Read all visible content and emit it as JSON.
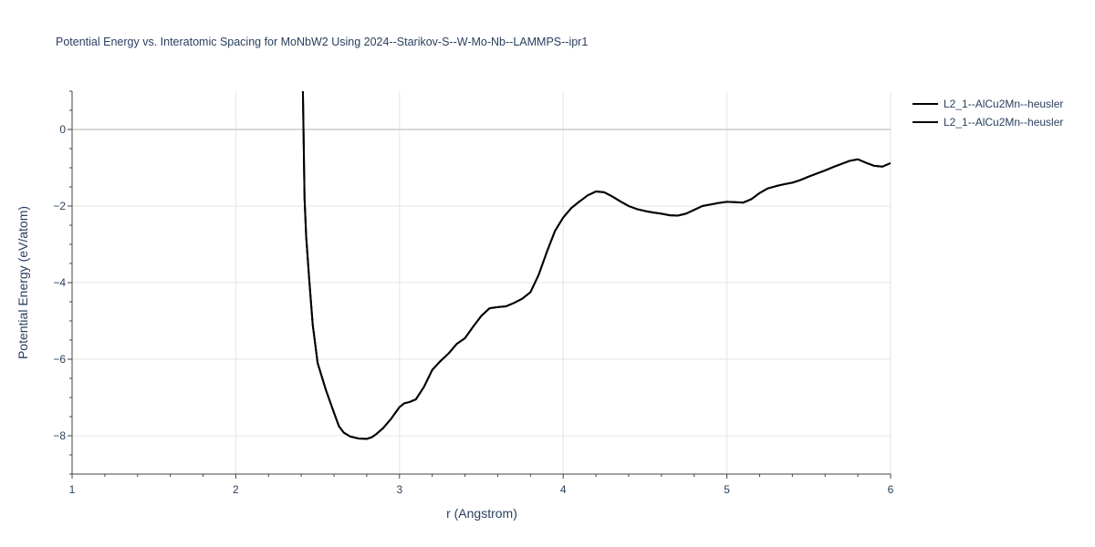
{
  "chart_data": {
    "type": "line",
    "title": "Potential Energy vs. Interatomic Spacing for MoNbW2 Using 2024--Starikov-S--W-Mo-Nb--LAMMPS--ipr1",
    "xlabel": "r (Angstrom)",
    "ylabel": "Potential Energy (eV/atom)",
    "xlim": [
      1,
      6
    ],
    "ylim": [
      -9,
      1
    ],
    "xticks": [
      1,
      2,
      3,
      4,
      5,
      6
    ],
    "yticks": [
      0,
      -2,
      -4,
      -6,
      -8
    ],
    "xtick_labels": [
      "1",
      "2",
      "3",
      "4",
      "5",
      "6"
    ],
    "ytick_labels": [
      "0",
      "−2",
      "−4",
      "−6",
      "−8"
    ],
    "grid": true,
    "legend_position": "top-right",
    "line_color": "#000000",
    "series": [
      {
        "name": "L2_1--AlCu2Mn--heusler",
        "x": [
          2.41,
          2.42,
          2.43,
          2.45,
          2.47,
          2.5,
          2.55,
          2.6,
          2.63,
          2.66,
          2.7,
          2.75,
          2.8,
          2.83,
          2.86,
          2.9,
          2.95,
          3.0,
          3.03,
          3.06,
          3.1,
          3.15,
          3.2,
          3.25,
          3.3,
          3.35,
          3.4,
          3.45,
          3.5,
          3.55,
          3.6,
          3.65,
          3.7,
          3.75,
          3.8,
          3.85,
          3.9,
          3.95,
          4.0,
          4.05,
          4.1,
          4.15,
          4.2,
          4.25,
          4.3,
          4.35,
          4.4,
          4.45,
          4.5,
          4.55,
          4.6,
          4.65,
          4.7,
          4.75,
          4.8,
          4.85,
          4.9,
          4.95,
          5.0,
          5.05,
          5.1,
          5.15,
          5.2,
          5.25,
          5.3,
          5.35,
          5.4,
          5.45,
          5.5,
          5.55,
          5.6,
          5.65,
          5.7,
          5.75,
          5.8,
          5.85,
          5.9,
          5.95,
          6.0
        ],
        "y": [
          1.0,
          -1.8,
          -2.8,
          -4.0,
          -5.1,
          -6.1,
          -6.8,
          -7.4,
          -7.75,
          -7.92,
          -8.02,
          -8.07,
          -8.08,
          -8.04,
          -7.95,
          -7.8,
          -7.55,
          -7.25,
          -7.15,
          -7.12,
          -7.05,
          -6.72,
          -6.28,
          -6.05,
          -5.85,
          -5.6,
          -5.45,
          -5.15,
          -4.87,
          -4.67,
          -4.64,
          -4.62,
          -4.53,
          -4.42,
          -4.25,
          -3.8,
          -3.2,
          -2.65,
          -2.3,
          -2.05,
          -1.88,
          -1.72,
          -1.62,
          -1.64,
          -1.75,
          -1.88,
          -2.0,
          -2.08,
          -2.13,
          -2.17,
          -2.2,
          -2.24,
          -2.25,
          -2.2,
          -2.1,
          -2.0,
          -1.96,
          -1.92,
          -1.89,
          -1.9,
          -1.91,
          -1.82,
          -1.66,
          -1.54,
          -1.48,
          -1.43,
          -1.39,
          -1.32,
          -1.23,
          -1.15,
          -1.07,
          -0.98,
          -0.9,
          -0.82,
          -0.78,
          -0.87,
          -0.95,
          -0.97,
          -0.88
        ]
      },
      {
        "name": "L2_1--AlCu2Mn--heusler",
        "x": [
          2.41,
          2.42,
          2.43,
          2.45,
          2.47,
          2.5,
          2.55,
          2.6,
          2.63,
          2.66,
          2.7,
          2.75,
          2.8,
          2.83,
          2.86,
          2.9,
          2.95,
          3.0,
          3.03,
          3.06,
          3.1,
          3.15,
          3.2,
          3.25,
          3.3,
          3.35,
          3.4,
          3.45,
          3.5,
          3.55,
          3.6,
          3.65,
          3.7,
          3.75,
          3.8,
          3.85,
          3.9,
          3.95,
          4.0,
          4.05,
          4.1,
          4.15,
          4.2,
          4.25,
          4.3,
          4.35,
          4.4,
          4.45,
          4.5,
          4.55,
          4.6,
          4.65,
          4.7,
          4.75,
          4.8,
          4.85,
          4.9,
          4.95,
          5.0,
          5.05,
          5.1,
          5.15,
          5.2,
          5.25,
          5.3,
          5.35,
          5.4,
          5.45,
          5.5,
          5.55,
          5.6,
          5.65,
          5.7,
          5.75,
          5.8,
          5.85,
          5.9,
          5.95,
          6.0
        ],
        "y": [
          1.0,
          -1.8,
          -2.8,
          -4.0,
          -5.1,
          -6.1,
          -6.8,
          -7.4,
          -7.75,
          -7.92,
          -8.02,
          -8.07,
          -8.08,
          -8.04,
          -7.95,
          -7.8,
          -7.55,
          -7.25,
          -7.15,
          -7.12,
          -7.05,
          -6.72,
          -6.28,
          -6.05,
          -5.85,
          -5.6,
          -5.45,
          -5.15,
          -4.87,
          -4.67,
          -4.64,
          -4.62,
          -4.53,
          -4.42,
          -4.25,
          -3.8,
          -3.2,
          -2.65,
          -2.3,
          -2.05,
          -1.88,
          -1.72,
          -1.62,
          -1.64,
          -1.75,
          -1.88,
          -2.0,
          -2.08,
          -2.13,
          -2.17,
          -2.2,
          -2.24,
          -2.25,
          -2.2,
          -2.1,
          -2.0,
          -1.96,
          -1.92,
          -1.89,
          -1.9,
          -1.91,
          -1.82,
          -1.66,
          -1.54,
          -1.48,
          -1.43,
          -1.39,
          -1.32,
          -1.23,
          -1.15,
          -1.07,
          -0.98,
          -0.9,
          -0.82,
          -0.78,
          -0.87,
          -0.95,
          -0.97,
          -0.88
        ]
      }
    ]
  }
}
